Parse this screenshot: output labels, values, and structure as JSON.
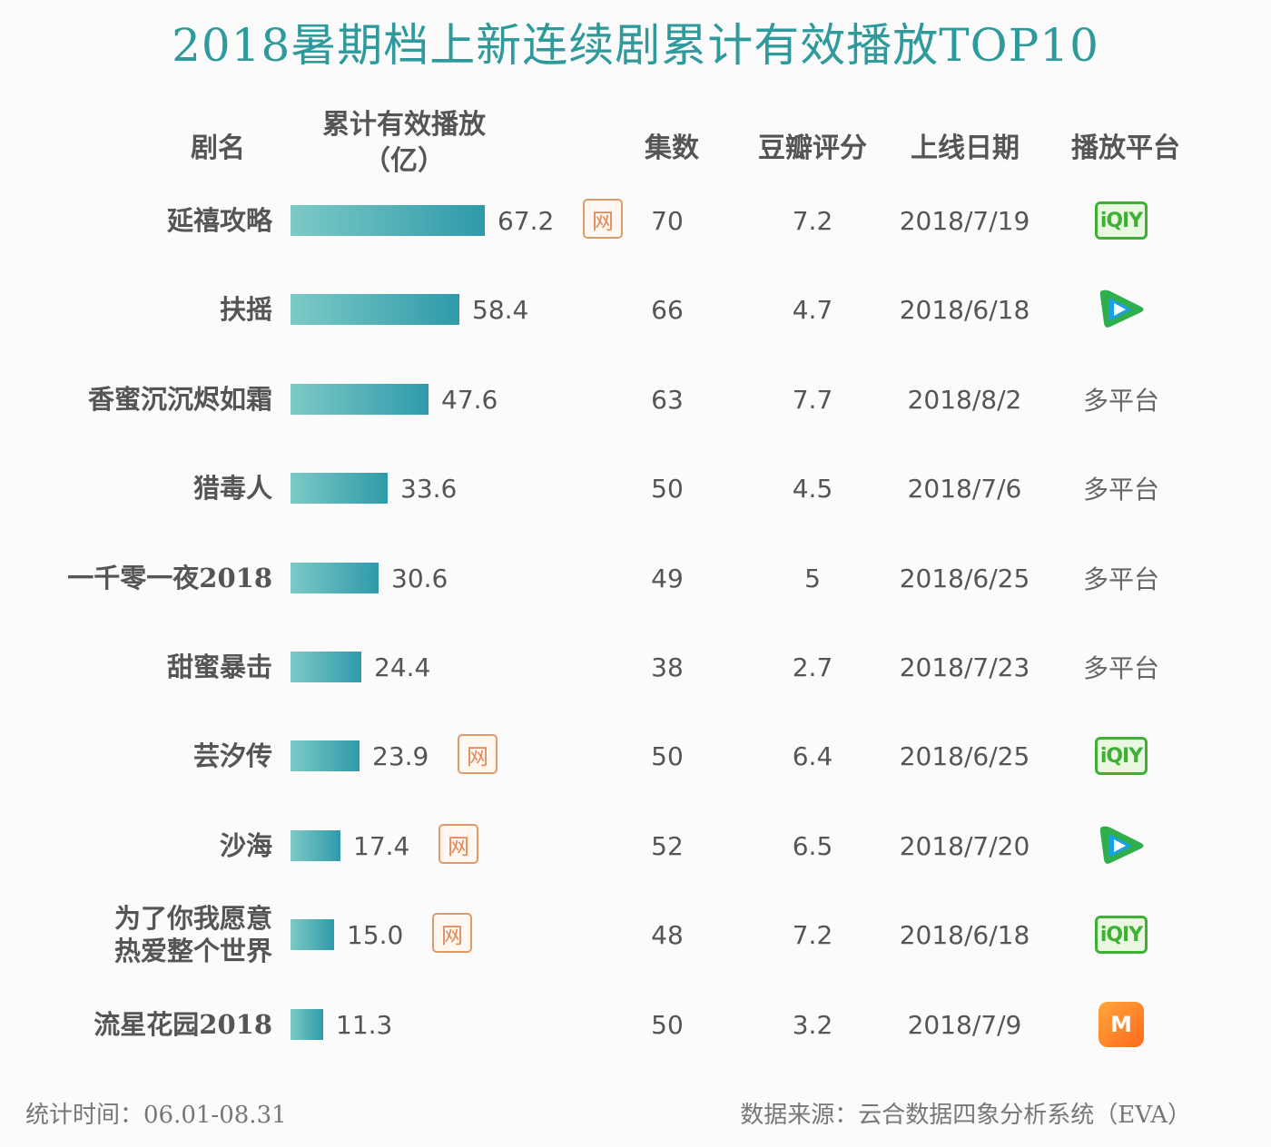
{
  "title": "2018暑期档上新连续剧累计有效播放TOP10",
  "headers": {
    "name": "剧名",
    "plays_line1": "累计有效播放",
    "plays_line2": "（亿）",
    "episodes": "集数",
    "douban": "豆瓣评分",
    "release": "上线日期",
    "platform": "播放平台"
  },
  "badge_label": "网",
  "platform_icons": {
    "iqiyi": "iQIY",
    "tencent": "tencent-video-icon",
    "mango": "mango-tv-icon"
  },
  "chart_data": {
    "type": "table",
    "title": "2018暑期档上新连续剧累计有效播放TOP10",
    "categories": [
      "延禧攻略",
      "扶摇",
      "香蜜沉沉烬如霜",
      "猎毒人",
      "一千零一夜2018",
      "甜蜜暴击",
      "芸汐传",
      "沙海",
      "为了你我愿意\n热爱整个世界",
      "流星花园2018"
    ],
    "series": [
      {
        "name": "累计有效播放（亿）",
        "values": [
          67.2,
          58.4,
          47.6,
          33.6,
          30.6,
          24.4,
          23.9,
          17.4,
          15.0,
          11.3
        ]
      }
    ],
    "rows": [
      {
        "name": "延禧攻略",
        "plays": "67.2",
        "value": 67.2,
        "web": true,
        "episodes": "70",
        "score": "7.2",
        "date": "2018/7/19",
        "platform": "iqiyi"
      },
      {
        "name": "扶摇",
        "plays": "58.4",
        "value": 58.4,
        "web": false,
        "episodes": "66",
        "score": "4.7",
        "date": "2018/6/18",
        "platform": "tencent"
      },
      {
        "name": "香蜜沉沉烬如霜",
        "plays": "47.6",
        "value": 47.6,
        "web": false,
        "episodes": "63",
        "score": "7.7",
        "date": "2018/8/2",
        "platform": "多平台"
      },
      {
        "name": "猎毒人",
        "plays": "33.6",
        "value": 33.6,
        "web": false,
        "episodes": "50",
        "score": "4.5",
        "date": "2018/7/6",
        "platform": "多平台"
      },
      {
        "name": "一千零一夜2018",
        "plays": "30.6",
        "value": 30.6,
        "web": false,
        "episodes": "49",
        "score": "5",
        "date": "2018/6/25",
        "platform": "多平台"
      },
      {
        "name": "甜蜜暴击",
        "plays": "24.4",
        "value": 24.4,
        "web": false,
        "episodes": "38",
        "score": "2.7",
        "date": "2018/7/23",
        "platform": "多平台"
      },
      {
        "name": "芸汐传",
        "plays": "23.9",
        "value": 23.9,
        "web": true,
        "episodes": "50",
        "score": "6.4",
        "date": "2018/6/25",
        "platform": "iqiyi"
      },
      {
        "name": "沙海",
        "plays": "17.4",
        "value": 17.4,
        "web": true,
        "episodes": "52",
        "score": "6.5",
        "date": "2018/7/20",
        "platform": "tencent"
      },
      {
        "name": "为了你我愿意\n热爱整个世界",
        "plays": "15.0",
        "value": 15.0,
        "web": true,
        "episodes": "48",
        "score": "7.2",
        "date": "2018/6/18",
        "platform": "iqiyi"
      },
      {
        "name": "流星花园2018",
        "plays": "11.3",
        "value": 11.3,
        "web": false,
        "episodes": "50",
        "score": "3.2",
        "date": "2018/7/9",
        "platform": "mango"
      }
    ]
  },
  "colors": {
    "title": "#2e9a9c",
    "bar_start": "#7ccac6",
    "bar_end": "#2f9aaa",
    "badge": "#e09a6a",
    "iqiyi": "#3eb135"
  },
  "footer": {
    "left": "统计时间：06.01-08.31",
    "right": "数据来源：云合数据四象分析系统（EVA）"
  }
}
